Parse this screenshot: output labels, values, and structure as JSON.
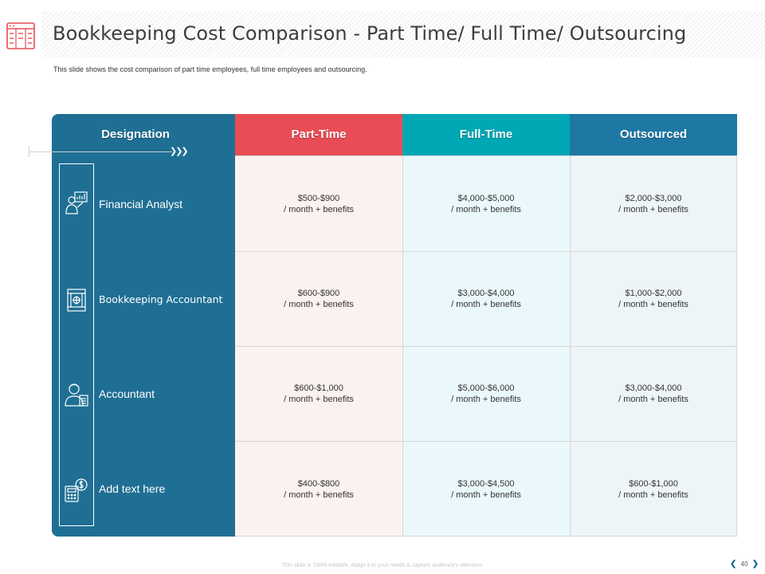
{
  "header": {
    "title": "Bookkeeping Cost Comparison - Part Time/ Full Time/ Outsourcing",
    "subtitle": "This slide shows the cost comparison of part time employees, full time employees and outsourcing."
  },
  "table": {
    "columns": [
      "Designation",
      "Part-Time",
      "Full-Time",
      "Outsourced"
    ],
    "rows": [
      {
        "designation": "Financial Analyst",
        "icon": "financial-analyst-icon",
        "values": [
          [
            "$500-$900",
            "/ month + benefits"
          ],
          [
            "$4,000-$5,000",
            "/ month + benefits"
          ],
          [
            "$2,000-$3,000",
            "/ month + benefits"
          ]
        ]
      },
      {
        "designation": "Bookkeeping Accountant",
        "icon": "bookkeeping-ledger-icon",
        "values": [
          [
            "$600-$900",
            "/ month + benefits"
          ],
          [
            "$3,000-$4,000",
            "/ month + benefits"
          ],
          [
            "$1,000-$2,000",
            "/ month + benefits"
          ]
        ]
      },
      {
        "designation": "Accountant",
        "icon": "accountant-person-icon",
        "values": [
          [
            "$600-$1,000",
            "/ month + benefits"
          ],
          [
            "$5,000-$6,000",
            "/ month + benefits"
          ],
          [
            "$3,000-$4,000",
            "/ month + benefits"
          ]
        ]
      },
      {
        "designation": "Add text here",
        "icon": "calculator-dollar-icon",
        "values": [
          [
            "$400-$800",
            "/ month + benefits"
          ],
          [
            "$3,000-$4,500",
            "/ month + benefits"
          ],
          [
            "$600-$1,000",
            "/ month + benefits"
          ]
        ]
      }
    ]
  },
  "colors": {
    "panel": "#1f6f94",
    "part_time": "#e84d55",
    "full_time": "#00a7b5",
    "outsourced": "#1f78a4"
  },
  "footer": {
    "note": "This slide is 100% editable. Adapt it to your needs & capture audience's attention.",
    "page_number": "40",
    "prev_arrow": "❮",
    "next_arrow": "❯"
  }
}
